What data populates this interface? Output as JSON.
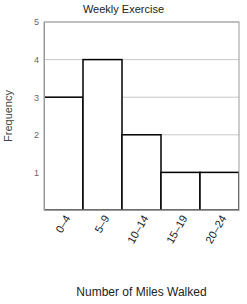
{
  "chart_data": {
    "type": "bar",
    "title": "Weekly Exercise",
    "x_label": "Number of Miles Walked",
    "y_label": "Frequency",
    "categories": [
      "0–4",
      "5–9",
      "10–14",
      "15–19",
      "20–24"
    ],
    "values": [
      3,
      4,
      2,
      1,
      1
    ],
    "color": "#ffffff",
    "ylim": [
      0,
      5
    ],
    "yticks": [
      1,
      2,
      3,
      4,
      5
    ],
    "grid": true
  }
}
